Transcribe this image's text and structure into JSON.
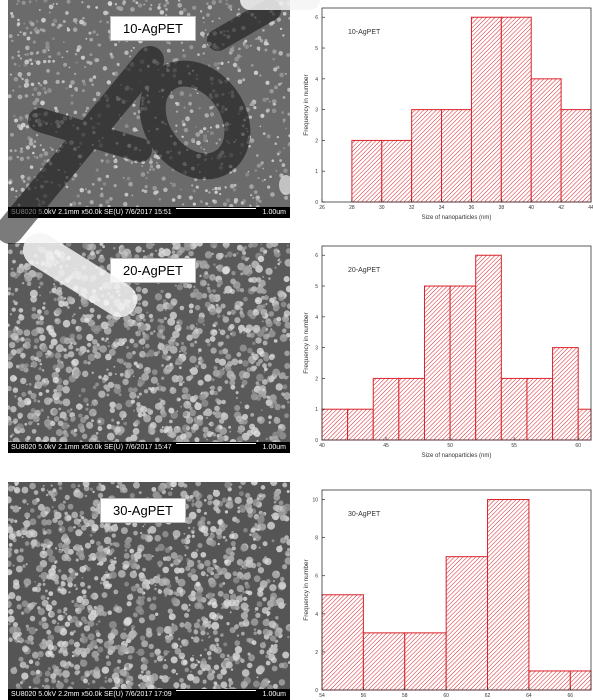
{
  "panels": [
    {
      "sem": {
        "label": "10-AgPET",
        "info": "SU8020 5.0kV 2.1mm x50.0k SE(U) 7/6/2017 15:51",
        "scale": "1.00um",
        "tone": "#6b6b6b"
      }
    },
    {
      "sem": {
        "label": "20-AgPET",
        "info": "SU8020 5.0kV 2.1mm x50.0k SE(U) 7/6/2017 15:47",
        "scale": "1.00um",
        "tone": "#5a5a5a"
      }
    },
    {
      "sem": {
        "label": "30-AgPET",
        "info": "SU8020 5.0kV 2.2mm x50.0k SE(U) 7/6/2017 17:09",
        "scale": "1.00um",
        "tone": "#555555"
      }
    }
  ],
  "chart_data": [
    {
      "type": "bar",
      "inset_label": "10-AgPET",
      "xlabel": "Size of nanoparticles (nm)",
      "ylabel": "Frequency in number",
      "x_ticks": [
        "26",
        "28",
        "30",
        "32",
        "34",
        "36",
        "38",
        "40",
        "42",
        "44"
      ],
      "xlim": [
        26,
        44
      ],
      "ylim": [
        0,
        6.3
      ],
      "y_ticks": [
        0,
        1,
        2,
        3,
        4,
        5,
        6
      ],
      "bins": [
        {
          "start": 28,
          "end": 30,
          "count": 2
        },
        {
          "start": 30,
          "end": 32,
          "count": 2
        },
        {
          "start": 32,
          "end": 34,
          "count": 3
        },
        {
          "start": 34,
          "end": 36,
          "count": 3
        },
        {
          "start": 36,
          "end": 38,
          "count": 6
        },
        {
          "start": 38,
          "end": 40,
          "count": 6
        },
        {
          "start": 40,
          "end": 42,
          "count": 4
        },
        {
          "start": 42,
          "end": 44,
          "count": 3
        }
      ],
      "bar_color": "#d9222a",
      "hatch": "diagonal"
    },
    {
      "type": "bar",
      "inset_label": "20-AgPET",
      "xlabel": "Size of nanoparticles (nm)",
      "ylabel": "Frequency in number",
      "x_ticks": [
        "40",
        "45",
        "50",
        "55",
        "60"
      ],
      "xlim": [
        40,
        61
      ],
      "ylim": [
        0,
        6.3
      ],
      "y_ticks": [
        0,
        1,
        2,
        3,
        4,
        5,
        6
      ],
      "bins": [
        {
          "start": 40,
          "end": 42,
          "count": 1
        },
        {
          "start": 42,
          "end": 44,
          "count": 1
        },
        {
          "start": 44,
          "end": 46,
          "count": 2
        },
        {
          "start": 46,
          "end": 48,
          "count": 2
        },
        {
          "start": 48,
          "end": 50,
          "count": 5
        },
        {
          "start": 50,
          "end": 52,
          "count": 5
        },
        {
          "start": 52,
          "end": 54,
          "count": 6
        },
        {
          "start": 54,
          "end": 56,
          "count": 2
        },
        {
          "start": 56,
          "end": 58,
          "count": 2
        },
        {
          "start": 58,
          "end": 60,
          "count": 3
        },
        {
          "start": 60,
          "end": 61,
          "count": 1
        }
      ],
      "bar_color": "#d9222a",
      "hatch": "diagonal"
    },
    {
      "type": "bar",
      "inset_label": "30-AgPET",
      "xlabel": "",
      "ylabel": "Frequency in number",
      "x_ticks": [
        "54",
        "56",
        "58",
        "60",
        "62",
        "64",
        "66"
      ],
      "xlim": [
        54,
        67
      ],
      "ylim": [
        0,
        10.5
      ],
      "y_ticks": [
        0,
        2,
        4,
        6,
        8,
        10
      ],
      "bins": [
        {
          "start": 54,
          "end": 56,
          "count": 5
        },
        {
          "start": 56,
          "end": 58,
          "count": 3
        },
        {
          "start": 58,
          "end": 60,
          "count": 3
        },
        {
          "start": 60,
          "end": 62,
          "count": 7
        },
        {
          "start": 62,
          "end": 64,
          "count": 10
        },
        {
          "start": 64,
          "end": 66,
          "count": 1
        },
        {
          "start": 66,
          "end": 67,
          "count": 1
        }
      ],
      "bar_color": "#d9222a",
      "hatch": "diagonal"
    }
  ]
}
